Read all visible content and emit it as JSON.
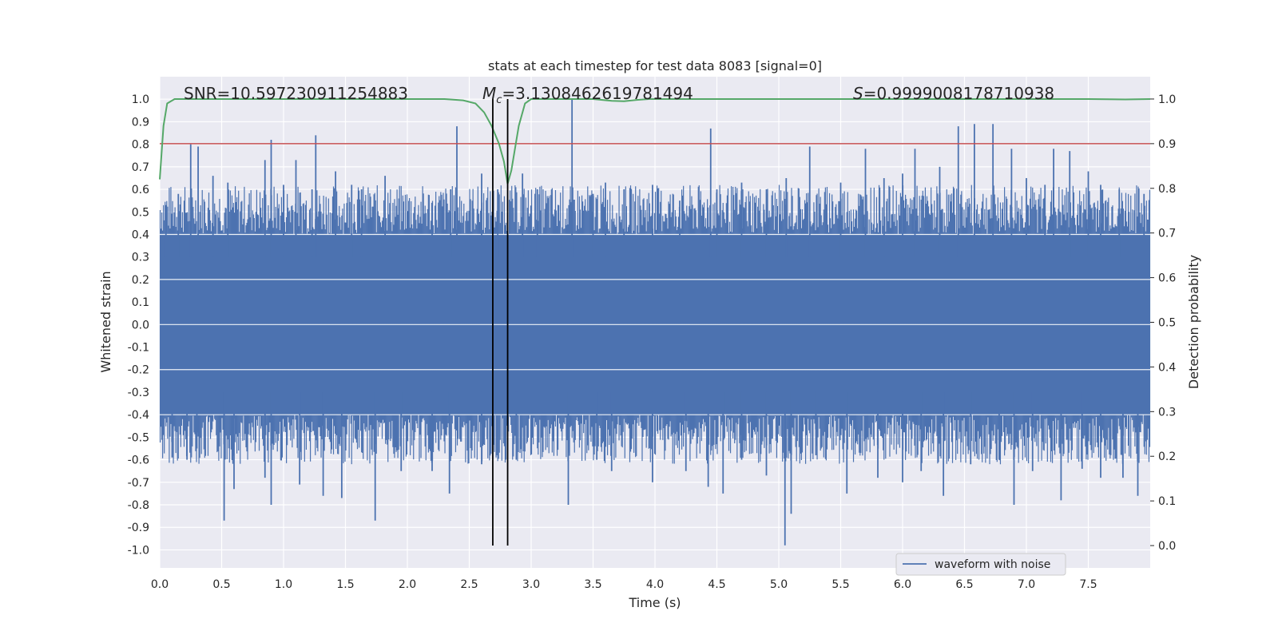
{
  "chart_data": {
    "type": "line",
    "title": "stats at each timestep for test data 8083 [signal=0]",
    "xlabel": "Time (s)",
    "ylabel": "Whitened strain",
    "y2label": "Detection probability",
    "xlim": [
      0.0,
      8.0
    ],
    "ylim": [
      -1.08,
      1.1
    ],
    "y2lim": [
      -0.05,
      1.05
    ],
    "x_ticks": [
      "0.0",
      "0.5",
      "1.0",
      "1.5",
      "2.0",
      "2.5",
      "3.0",
      "3.5",
      "4.0",
      "4.5",
      "5.0",
      "5.5",
      "6.0",
      "6.5",
      "7.0",
      "7.5"
    ],
    "y_ticks": [
      "1.0",
      "0.9",
      "0.8",
      "0.7",
      "0.6",
      "0.5",
      "0.4",
      "0.3",
      "0.2",
      "0.1",
      "0.0",
      "-0.1",
      "-0.2",
      "-0.3",
      "-0.4",
      "-0.5",
      "-0.6",
      "-0.7",
      "-0.8",
      "-0.9",
      "-1.0"
    ],
    "y2_ticks": [
      "1.0",
      "0.9",
      "0.8",
      "0.7",
      "0.6",
      "0.5",
      "0.4",
      "0.3",
      "0.2",
      "0.1",
      "0.0"
    ],
    "annotations": {
      "snr": "SNR=10.597230911254883",
      "mc_symbol": "M",
      "mc_sub": "c",
      "mc_value": "=3.1308462619781494",
      "s_symbol": "S",
      "s_value": "=0.9999008178710938"
    },
    "legend": {
      "label": "waveform with noise",
      "placement": "lower-right"
    },
    "threshold": {
      "y2": 0.9,
      "color": "#c44e52"
    },
    "event_lines": {
      "x": [
        2.69,
        2.81
      ],
      "color": "#000000"
    },
    "series": [
      {
        "name": "waveform with noise",
        "color": "#4c72b0",
        "envelope_note": "dense noise, spikes listed",
        "spikes_up": [
          [
            0.05,
            0.53
          ],
          [
            0.15,
            0.58
          ],
          [
            0.25,
            0.8
          ],
          [
            0.31,
            0.79
          ],
          [
            0.43,
            0.66
          ],
          [
            0.55,
            0.63
          ],
          [
            0.85,
            0.73
          ],
          [
            0.9,
            0.82
          ],
          [
            1.0,
            0.62
          ],
          [
            1.1,
            0.73
          ],
          [
            1.23,
            0.6
          ],
          [
            1.26,
            0.84
          ],
          [
            1.42,
            0.68
          ],
          [
            1.55,
            0.62
          ],
          [
            1.63,
            0.6
          ],
          [
            1.82,
            0.66
          ],
          [
            2.2,
            0.54
          ],
          [
            2.35,
            0.6
          ],
          [
            2.4,
            0.88
          ],
          [
            2.6,
            0.67
          ],
          [
            2.73,
            0.6
          ],
          [
            2.93,
            0.67
          ],
          [
            3.05,
            0.6
          ],
          [
            3.33,
            1.0
          ],
          [
            3.5,
            0.58
          ],
          [
            3.6,
            0.63
          ],
          [
            3.75,
            0.6
          ],
          [
            3.98,
            0.62
          ],
          [
            4.2,
            0.55
          ],
          [
            4.45,
            0.87
          ],
          [
            4.5,
            0.6
          ],
          [
            4.7,
            0.63
          ],
          [
            4.9,
            0.6
          ],
          [
            5.06,
            0.65
          ],
          [
            5.25,
            0.79
          ],
          [
            5.5,
            0.63
          ],
          [
            5.7,
            0.78
          ],
          [
            5.85,
            0.65
          ],
          [
            6.0,
            0.67
          ],
          [
            6.1,
            0.78
          ],
          [
            6.3,
            0.7
          ],
          [
            6.45,
            0.88
          ],
          [
            6.58,
            0.89
          ],
          [
            6.73,
            0.89
          ],
          [
            6.88,
            0.78
          ],
          [
            7.0,
            0.65
          ],
          [
            7.15,
            0.62
          ],
          [
            7.22,
            0.78
          ],
          [
            7.35,
            0.77
          ],
          [
            7.5,
            0.68
          ],
          [
            7.6,
            0.62
          ],
          [
            7.75,
            0.6
          ],
          [
            7.95,
            0.58
          ]
        ],
        "spikes_down": [
          [
            0.1,
            -0.59
          ],
          [
            0.22,
            -0.6
          ],
          [
            0.3,
            -0.55
          ],
          [
            0.52,
            -0.87
          ],
          [
            0.6,
            -0.73
          ],
          [
            0.85,
            -0.68
          ],
          [
            0.9,
            -0.8
          ],
          [
            1.13,
            -0.71
          ],
          [
            1.32,
            -0.76
          ],
          [
            1.47,
            -0.77
          ],
          [
            1.74,
            -0.87
          ],
          [
            1.95,
            -0.65
          ],
          [
            2.2,
            -0.65
          ],
          [
            2.34,
            -0.75
          ],
          [
            2.6,
            -0.62
          ],
          [
            2.88,
            -0.6
          ],
          [
            3.3,
            -0.8
          ],
          [
            3.53,
            -0.6
          ],
          [
            3.65,
            -0.65
          ],
          [
            3.98,
            -0.7
          ],
          [
            4.25,
            -0.65
          ],
          [
            4.43,
            -0.72
          ],
          [
            4.55,
            -0.75
          ],
          [
            4.7,
            -0.6
          ],
          [
            4.9,
            -0.67
          ],
          [
            5.05,
            -0.98
          ],
          [
            5.1,
            -0.84
          ],
          [
            5.3,
            -0.58
          ],
          [
            5.55,
            -0.75
          ],
          [
            5.8,
            -0.68
          ],
          [
            6.0,
            -0.7
          ],
          [
            6.15,
            -0.65
          ],
          [
            6.33,
            -0.76
          ],
          [
            6.55,
            -0.62
          ],
          [
            6.78,
            -0.6
          ],
          [
            6.9,
            -0.8
          ],
          [
            7.05,
            -0.65
          ],
          [
            7.28,
            -0.78
          ],
          [
            7.45,
            -0.64
          ],
          [
            7.6,
            -0.68
          ],
          [
            7.78,
            -0.68
          ],
          [
            7.9,
            -0.76
          ]
        ]
      },
      {
        "name": "detection probability",
        "color": "#55a868",
        "axis": "y2",
        "points": [
          [
            0.0,
            0.82
          ],
          [
            0.03,
            0.94
          ],
          [
            0.06,
            0.99
          ],
          [
            0.12,
            1.0
          ],
          [
            0.5,
            1.0
          ],
          [
            1.0,
            1.0
          ],
          [
            1.5,
            1.0
          ],
          [
            2.0,
            1.0
          ],
          [
            2.3,
            1.0
          ],
          [
            2.45,
            0.997
          ],
          [
            2.55,
            0.99
          ],
          [
            2.62,
            0.97
          ],
          [
            2.68,
            0.94
          ],
          [
            2.74,
            0.9
          ],
          [
            2.78,
            0.86
          ],
          [
            2.81,
            0.81
          ],
          [
            2.84,
            0.84
          ],
          [
            2.9,
            0.94
          ],
          [
            2.95,
            0.99
          ],
          [
            3.0,
            1.0
          ],
          [
            3.3,
            1.0
          ],
          [
            3.5,
            1.0
          ],
          [
            3.65,
            0.996
          ],
          [
            3.75,
            0.995
          ],
          [
            3.85,
            0.998
          ],
          [
            3.95,
            1.0
          ],
          [
            4.5,
            1.0
          ],
          [
            5.0,
            1.0
          ],
          [
            5.5,
            1.0
          ],
          [
            6.0,
            1.0
          ],
          [
            6.5,
            1.0
          ],
          [
            7.0,
            1.0
          ],
          [
            7.5,
            1.0
          ],
          [
            7.8,
            0.999
          ],
          [
            8.0,
            1.0
          ]
        ]
      }
    ]
  }
}
